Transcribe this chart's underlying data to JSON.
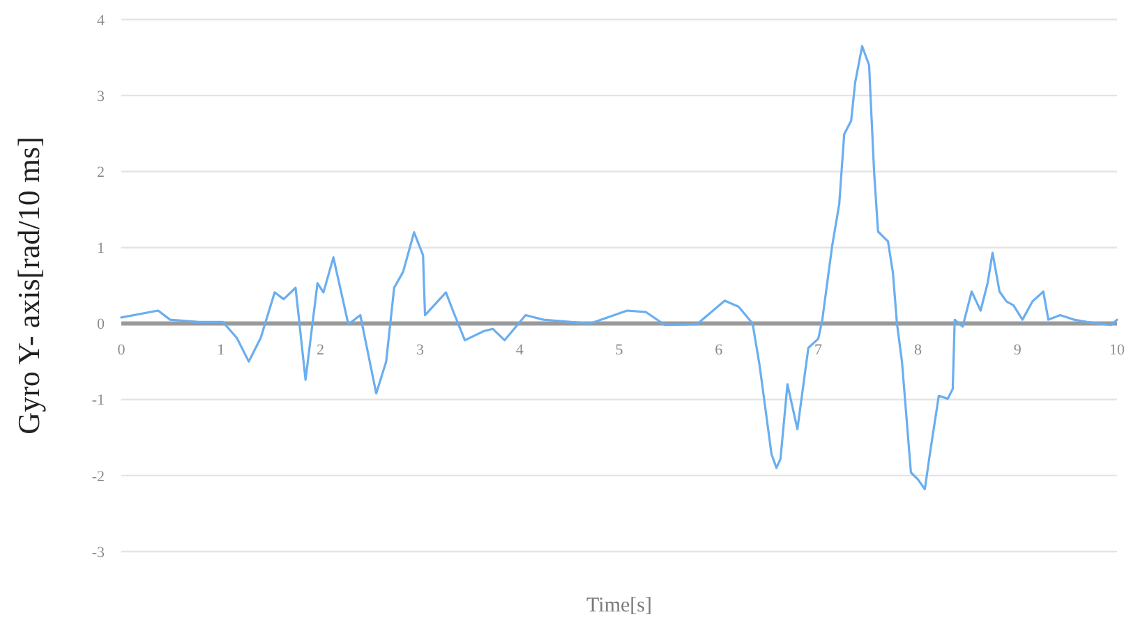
{
  "chart_data": {
    "type": "line",
    "xlabel": "Time[s]",
    "ylabel": "Gyro Y- axis[rad/10 ms]",
    "xlim": [
      0,
      10
    ],
    "xticks": [
      0,
      1,
      2,
      3,
      4,
      5,
      6,
      7,
      8,
      9,
      10
    ],
    "ylim": [
      -3,
      4
    ],
    "yticks": [
      -3,
      -2,
      -1,
      0,
      1,
      2,
      3,
      4
    ],
    "grid": "y",
    "marker": "none",
    "line_style": "solid",
    "series": [
      {
        "color": "#6aaef0",
        "x": [
          0,
          0.37,
          0.49,
          0.78,
          1.02,
          1.16,
          1.28,
          1.4,
          1.54,
          1.63,
          1.75,
          1.85,
          1.97,
          2.03,
          2.13,
          2.28,
          2.4,
          2.56,
          2.66,
          2.74,
          2.83,
          2.94,
          3.03,
          3.05,
          3.26,
          3.33,
          3.45,
          3.64,
          3.73,
          3.85,
          4.06,
          4.24,
          4.71,
          5.08,
          5.27,
          5.46,
          5.78,
          6.06,
          6.2,
          6.34,
          6.41,
          6.53,
          6.58,
          6.62,
          6.69,
          6.79,
          6.9,
          7.0,
          7.04,
          7.14,
          7.21,
          7.26,
          7.33,
          7.37,
          7.44,
          7.51,
          7.56,
          7.6,
          7.7,
          7.75,
          7.79,
          7.84,
          7.93,
          8.0,
          8.07,
          8.12,
          8.21,
          8.3,
          8.35,
          8.37,
          8.45,
          8.54,
          8.63,
          8.7,
          8.75,
          8.82,
          8.89,
          8.96,
          9.05,
          9.15,
          9.26,
          9.31,
          9.43,
          9.57,
          9.7,
          9.94,
          10
        ],
        "values": [
          0.08,
          0.17,
          0.05,
          0.02,
          0.02,
          -0.19,
          -0.5,
          -0.19,
          0.41,
          0.32,
          0.47,
          -0.74,
          0.53,
          0.41,
          0.87,
          -0.01,
          0.11,
          -0.92,
          -0.5,
          0.47,
          0.68,
          1.2,
          0.9,
          0.11,
          0.41,
          0.17,
          -0.22,
          -0.1,
          -0.07,
          -0.22,
          0.11,
          0.05,
          0,
          0.17,
          0.15,
          -0.02,
          -0.01,
          0.3,
          0.22,
          0,
          -0.55,
          -1.72,
          -1.9,
          -1.78,
          -0.8,
          -1.39,
          -0.32,
          -0.2,
          0.05,
          1.03,
          1.57,
          2.49,
          2.67,
          3.17,
          3.65,
          3.4,
          2.0,
          1.21,
          1.08,
          0.66,
          0,
          -0.5,
          -1.96,
          -2.05,
          -2.18,
          -1.72,
          -0.95,
          -0.99,
          -0.86,
          0.05,
          -0.04,
          0.42,
          0.17,
          0.53,
          0.93,
          0.42,
          0.29,
          0.24,
          0.05,
          0.29,
          0.42,
          0.05,
          0.11,
          0.05,
          0.02,
          -0.02,
          0.05
        ]
      }
    ]
  }
}
